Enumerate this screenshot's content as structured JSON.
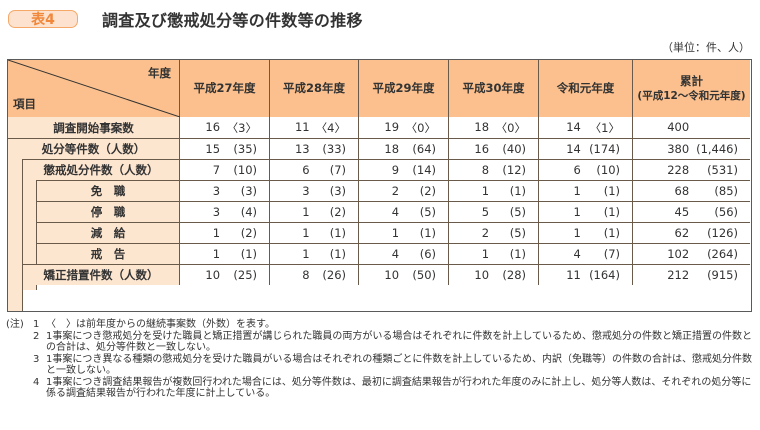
{
  "header": {
    "badge": "表4",
    "title": "調査及び懲戒処分等の件数等の推移",
    "unit": "（単位：件、人）"
  },
  "table": {
    "corner": {
      "year_label": "年度",
      "item_label": "項目"
    },
    "columns": [
      {
        "label": "平成27年度"
      },
      {
        "label": "平成28年度"
      },
      {
        "label": "平成29年度"
      },
      {
        "label": "平成30年度"
      },
      {
        "label": "令和元年度"
      },
      {
        "label": "累計",
        "sublabel": "(平成12～令和元年度)"
      }
    ],
    "rows": [
      {
        "label": "調査開始事案数",
        "level": 0,
        "cells": [
          {
            "n": "16",
            "p": "〈3〉"
          },
          {
            "n": "11",
            "p": "〈4〉"
          },
          {
            "n": "19",
            "p": "〈0〉"
          },
          {
            "n": "18",
            "p": "〈0〉"
          },
          {
            "n": "14",
            "p": "〈1〉"
          },
          {
            "n": "400",
            "p": ""
          }
        ]
      },
      {
        "label": "処分等件数（人数）",
        "level": 1,
        "cells": [
          {
            "n": "15",
            "p": "(35)"
          },
          {
            "n": "13",
            "p": "(33)"
          },
          {
            "n": "18",
            "p": "(64)"
          },
          {
            "n": "16",
            "p": "(40)"
          },
          {
            "n": "14",
            "p": "(174)"
          },
          {
            "n": "380",
            "p": "(1,446)"
          }
        ]
      },
      {
        "label": "懲戒処分件数（人数）",
        "level": 2,
        "cells": [
          {
            "n": "7",
            "p": "(10)"
          },
          {
            "n": "6",
            "p": "(7)"
          },
          {
            "n": "9",
            "p": "(14)"
          },
          {
            "n": "8",
            "p": "(12)"
          },
          {
            "n": "6",
            "p": "(10)"
          },
          {
            "n": "228",
            "p": "(531)"
          }
        ]
      },
      {
        "label": "免　職",
        "level": 3,
        "cells": [
          {
            "n": "3",
            "p": "(3)"
          },
          {
            "n": "3",
            "p": "(3)"
          },
          {
            "n": "2",
            "p": "(2)"
          },
          {
            "n": "1",
            "p": "(1)"
          },
          {
            "n": "1",
            "p": "(1)"
          },
          {
            "n": "68",
            "p": "(85)"
          }
        ]
      },
      {
        "label": "停　職",
        "level": 3,
        "cells": [
          {
            "n": "3",
            "p": "(4)"
          },
          {
            "n": "1",
            "p": "(2)"
          },
          {
            "n": "4",
            "p": "(5)"
          },
          {
            "n": "5",
            "p": "(5)"
          },
          {
            "n": "1",
            "p": "(1)"
          },
          {
            "n": "45",
            "p": "(56)"
          }
        ]
      },
      {
        "label": "減　給",
        "level": 3,
        "cells": [
          {
            "n": "1",
            "p": "(2)"
          },
          {
            "n": "1",
            "p": "(1)"
          },
          {
            "n": "1",
            "p": "(1)"
          },
          {
            "n": "2",
            "p": "(5)"
          },
          {
            "n": "1",
            "p": "(1)"
          },
          {
            "n": "62",
            "p": "(126)"
          }
        ]
      },
      {
        "label": "戒　告",
        "level": 3,
        "cells": [
          {
            "n": "1",
            "p": "(1)"
          },
          {
            "n": "1",
            "p": "(1)"
          },
          {
            "n": "4",
            "p": "(6)"
          },
          {
            "n": "1",
            "p": "(1)"
          },
          {
            "n": "4",
            "p": "(7)"
          },
          {
            "n": "102",
            "p": "(264)"
          }
        ]
      },
      {
        "label": "矯正措置件数（人数）",
        "level": 2,
        "cells": [
          {
            "n": "10",
            "p": "(25)"
          },
          {
            "n": "8",
            "p": "(26)"
          },
          {
            "n": "10",
            "p": "(50)"
          },
          {
            "n": "10",
            "p": "(28)"
          },
          {
            "n": "11",
            "p": "(164)"
          },
          {
            "n": "212",
            "p": "(915)"
          }
        ]
      }
    ]
  },
  "notes": {
    "prefix": "(注)",
    "items": [
      {
        "num": "1",
        "text": "〈　〉は前年度からの継続事案数（外数）を表す。"
      },
      {
        "num": "2",
        "text": "1事案につき懲戒処分を受けた職員と矯正措置が講じられた職員の両方がいる場合はそれぞれに件数を計上しているため、懲戒処分の件数と矯正措置の件数との合計は、処分等件数と一致しない。"
      },
      {
        "num": "3",
        "text": "1事案につき異なる種類の懲戒処分を受けた職員がいる場合はそれぞれの種類ごとに件数を計上しているため、内訳（免職等）の件数の合計は、懲戒処分件数と一致しない。"
      },
      {
        "num": "4",
        "text": "1事案につき調査結果報告が複数回行われた場合には、処分等件数は、最初に調査結果報告が行われた年度のみに計上し、処分等人数は、それぞれの処分等に係る調査結果報告が行われた年度に計上している。"
      }
    ]
  },
  "colors": {
    "header_bg": "#fbc08d",
    "label_bg": "#fde6d0",
    "badge_border": "#f5a868",
    "badge_text": "#f0873a"
  }
}
